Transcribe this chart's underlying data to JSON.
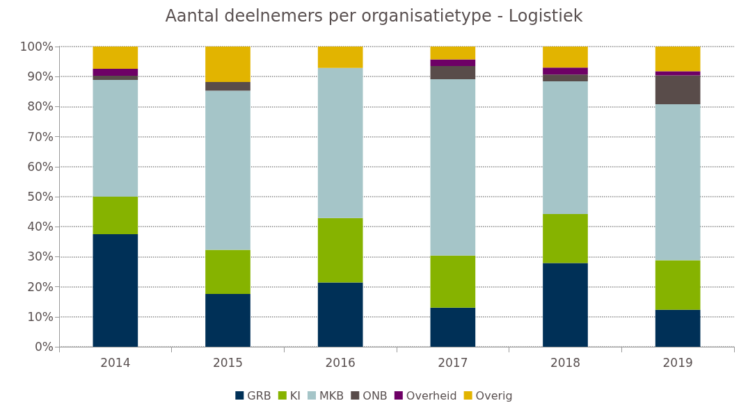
{
  "chart_data": {
    "type": "bar",
    "title": "Aantal deelnemers per organisatietype - Logistiek",
    "stacked": true,
    "categories": [
      "2014",
      "2015",
      "2016",
      "2017",
      "2018",
      "2019"
    ],
    "series": [
      {
        "name": "GRB",
        "color": "#003057",
        "values": [
          37.5,
          17.6,
          21.4,
          13.0,
          27.9,
          12.3
        ]
      },
      {
        "name": "KI",
        "color": "#86b300",
        "values": [
          12.5,
          14.7,
          21.5,
          17.4,
          16.3,
          16.5
        ]
      },
      {
        "name": "MKB",
        "color": "#a5c5c8",
        "values": [
          38.9,
          53.0,
          50.0,
          58.7,
          44.2,
          52.0
        ]
      },
      {
        "name": "ONB",
        "color": "#594c4a",
        "values": [
          1.4,
          2.9,
          0,
          4.4,
          2.3,
          9.6
        ]
      },
      {
        "name": "Overheid",
        "color": "#6e0066",
        "values": [
          2.3,
          0,
          0,
          2.2,
          2.3,
          1.4
        ]
      },
      {
        "name": "Overig",
        "color": "#e2b400",
        "values": [
          7.4,
          11.8,
          7.1,
          4.3,
          7.0,
          8.2
        ]
      }
    ],
    "ylim": [
      0,
      100
    ],
    "yticks": [
      {
        "value": 0,
        "label": "0%"
      },
      {
        "value": 10,
        "label": "10%"
      },
      {
        "value": 20,
        "label": "20%"
      },
      {
        "value": 30,
        "label": "30%"
      },
      {
        "value": 40,
        "label": "40%"
      },
      {
        "value": 50,
        "label": "50%"
      },
      {
        "value": 60,
        "label": "60%"
      },
      {
        "value": 70,
        "label": "70%"
      },
      {
        "value": 80,
        "label": "80%"
      },
      {
        "value": 90,
        "label": "90%"
      },
      {
        "value": 100,
        "label": "100%"
      }
    ],
    "grid": "y",
    "legend": "bottom"
  }
}
